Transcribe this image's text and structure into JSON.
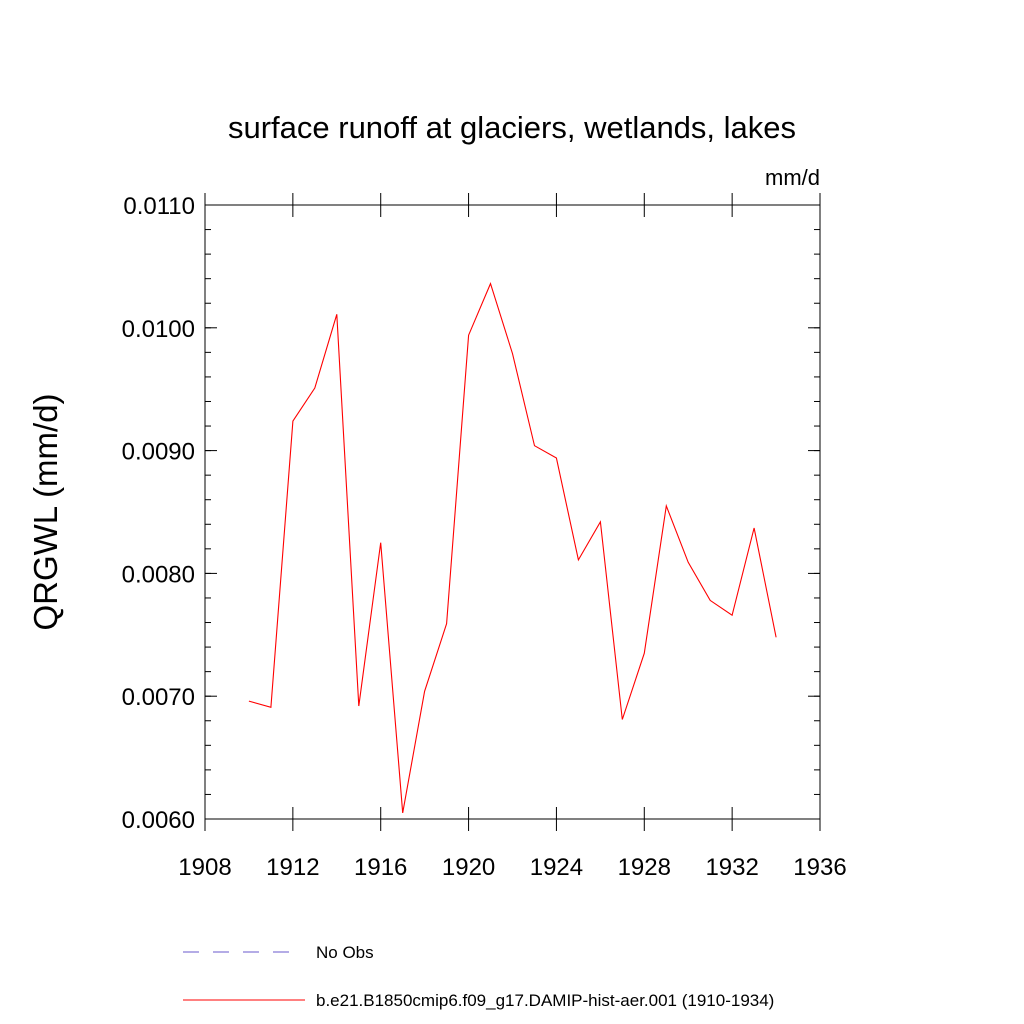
{
  "chart_data": {
    "type": "line",
    "title": "surface runoff at glaciers, wetlands, lakes",
    "units": "mm/d",
    "ylabel": "QRGWL  (mm/d)",
    "xlabel": "",
    "xlim": [
      1908,
      1936
    ],
    "ylim": [
      0.006,
      0.011
    ],
    "x_ticks": [
      1908,
      1912,
      1916,
      1920,
      1924,
      1928,
      1932,
      1936
    ],
    "x_tick_labels": [
      "1908",
      "1912",
      "1916",
      "1920",
      "1924",
      "1928",
      "1932",
      "1936"
    ],
    "y_ticks": [
      0.006,
      0.007,
      0.008,
      0.009,
      0.01,
      0.011
    ],
    "y_tick_labels": [
      "0.0060",
      "0.0070",
      "0.0080",
      "0.0090",
      "0.0100",
      "0.0110"
    ],
    "grid": false,
    "legend_position": "bottom",
    "series": [
      {
        "name": "No Obs",
        "color": "#6a5acd",
        "style": "dashed",
        "x": [],
        "values": []
      },
      {
        "name": "b.e21.B1850cmip6.f09_g17.DAMIP-hist-aer.001 (1910-1934)",
        "color": "#ff0000",
        "style": "solid",
        "x": [
          1910,
          1911,
          1912,
          1913,
          1914,
          1915,
          1916,
          1917,
          1918,
          1919,
          1920,
          1921,
          1922,
          1923,
          1924,
          1925,
          1926,
          1927,
          1928,
          1929,
          1930,
          1931,
          1932,
          1933,
          1934
        ],
        "values": [
          0.00696,
          0.00691,
          0.00924,
          0.00951,
          0.01011,
          0.00692,
          0.00825,
          0.00605,
          0.00704,
          0.00759,
          0.00994,
          0.01036,
          0.00979,
          0.00904,
          0.00894,
          0.00811,
          0.00842,
          0.00681,
          0.00735,
          0.00855,
          0.00809,
          0.00778,
          0.00766,
          0.00837,
          0.00748
        ]
      }
    ]
  }
}
